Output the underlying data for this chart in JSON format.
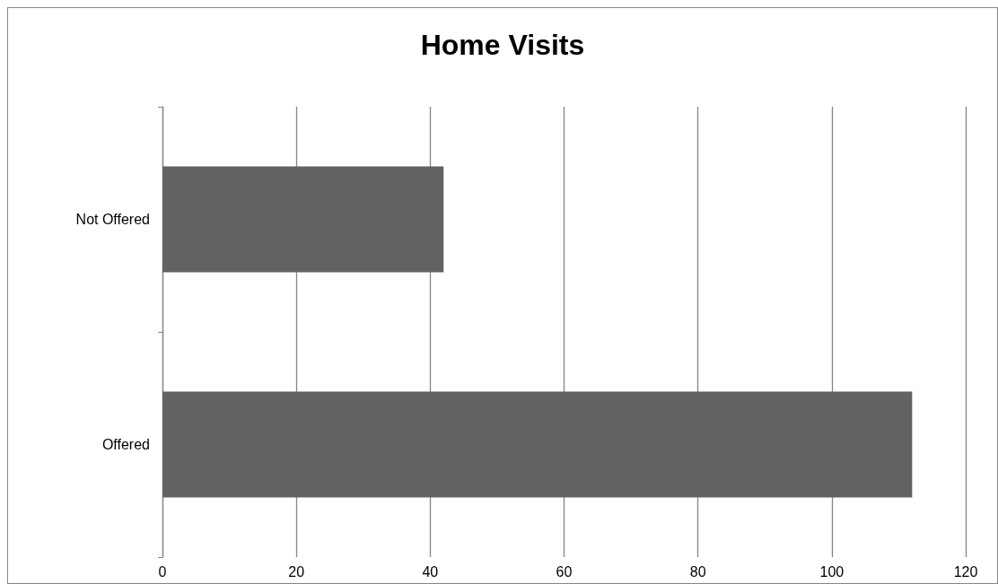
{
  "chart_data": {
    "type": "bar",
    "title": "Home Visits",
    "orientation": "horizontal",
    "categories": [
      "Not Offered",
      "Offered"
    ],
    "values": [
      42,
      112
    ],
    "color": "#626262",
    "xlim": [
      0,
      120
    ],
    "xticks": [
      0,
      20,
      40,
      60,
      80,
      100,
      120
    ],
    "grid": "x"
  }
}
